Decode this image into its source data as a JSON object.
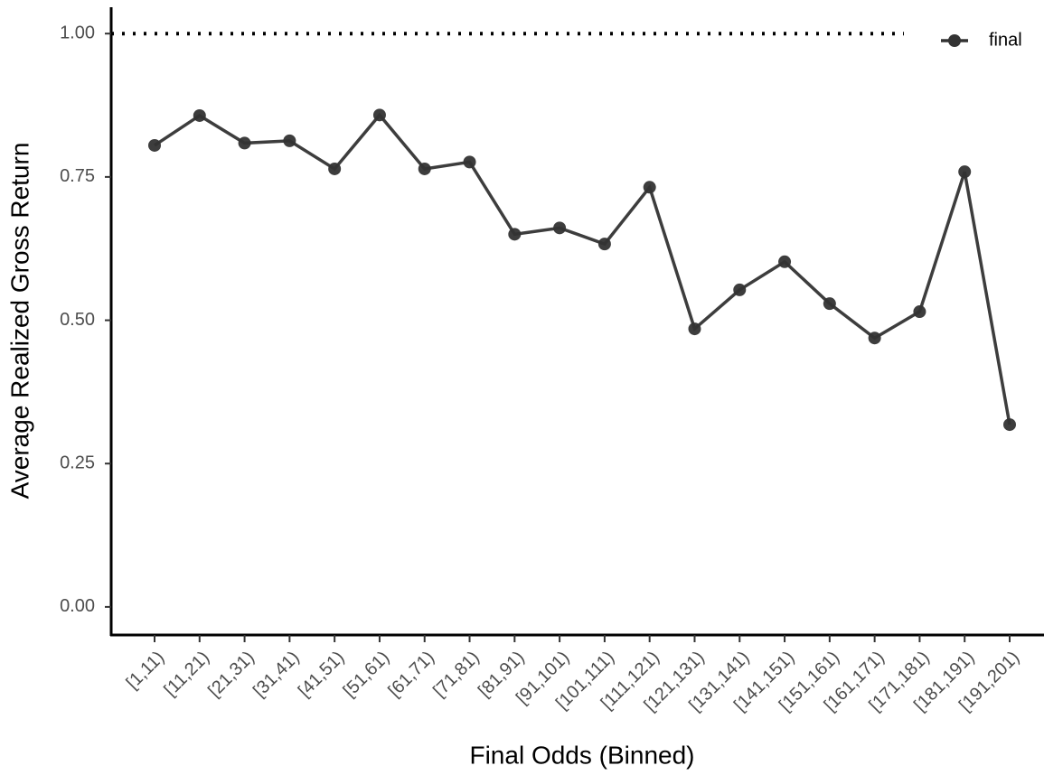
{
  "chart_data": {
    "type": "line",
    "x_label": "Final Odds (Binned)",
    "y_label": "Average Realized Gross Return",
    "categories": [
      "[1,11)",
      "[11,21)",
      "[21,31)",
      "[31,41)",
      "[41,51)",
      "[51,61)",
      "[61,71)",
      "[71,81)",
      "[81,91)",
      "[91,101)",
      "[101,111)",
      "[111,121)",
      "[121,131)",
      "[131,141)",
      "[141,151)",
      "[151,161)",
      "[161,171)",
      "[171,181)",
      "[181,191)",
      "[191,201)"
    ],
    "series": [
      {
        "name": "final",
        "color": "#333333",
        "values": [
          0.805,
          0.857,
          0.809,
          0.813,
          0.764,
          0.858,
          0.764,
          0.776,
          0.65,
          0.661,
          0.633,
          0.732,
          0.485,
          0.553,
          0.602,
          0.529,
          0.469,
          0.515,
          0.759,
          0.318
        ]
      }
    ],
    "hline": 1,
    "ylim": [
      -0.049,
      1.046
    ],
    "yticks": [
      {
        "value": 0,
        "label": "0.00"
      },
      {
        "value": 0.25,
        "label": "0.25"
      },
      {
        "value": 0.5,
        "label": "0.50"
      },
      {
        "value": 0.75,
        "label": "0.75"
      },
      {
        "value": 1,
        "label": "1.00"
      }
    ],
    "legend": "top-right"
  }
}
